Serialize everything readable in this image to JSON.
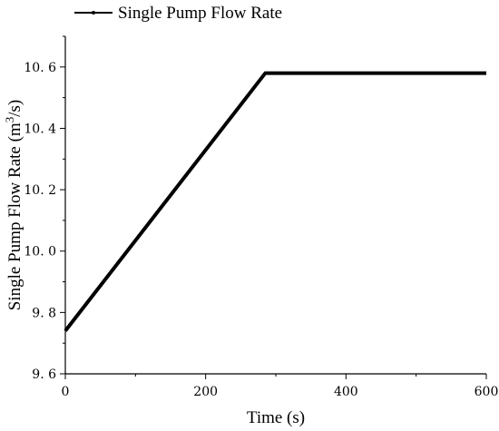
{
  "chart_data": {
    "type": "line",
    "xlabel": "Time (s)",
    "ylabel_main": "Single Pump Flow Rate (m",
    "ylabel_sup": "3",
    "ylabel_tail": "/s)",
    "xlim": [
      0,
      600
    ],
    "ylim": [
      9.6,
      10.7
    ],
    "grid": false,
    "legend_position": "top-left",
    "x_ticks": [
      0,
      200,
      400,
      600
    ],
    "x_tick_labels": [
      "0",
      "200",
      "400",
      "600"
    ],
    "y_ticks": [
      9.6,
      9.8,
      10.0,
      10.2,
      10.4,
      10.6
    ],
    "y_tick_labels": [
      "9. 6",
      "9. 8",
      "10. 0",
      "10. 2",
      "10. 4",
      "10. 6"
    ],
    "series": [
      {
        "name": "Single Pump Flow Rate",
        "color": "#000000",
        "x": [
          0,
          285,
          600
        ],
        "y": [
          9.74,
          10.58,
          10.58
        ]
      }
    ]
  }
}
